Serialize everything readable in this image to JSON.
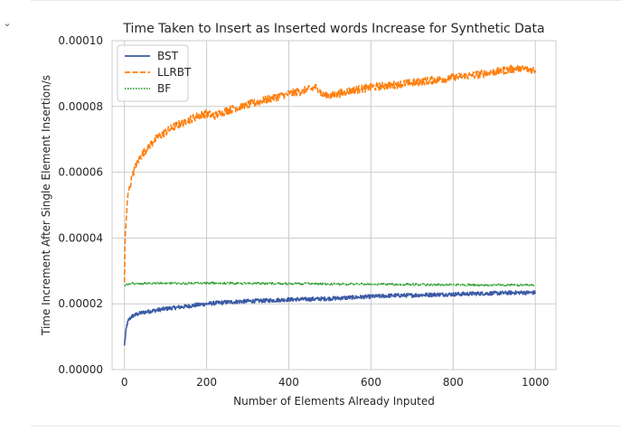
{
  "notebook": {
    "collapse_icon": "chevron-down-icon",
    "collapse_glyph": "⌄"
  },
  "chart_data": {
    "type": "line",
    "title": "Time Taken to Insert as Inserted words Increase for Synthetic Data",
    "xlabel": "Number of Elements Already Inputed",
    "ylabel": "Time Increment After Single Element Insertion/s",
    "xlim": [
      -30,
      1050
    ],
    "ylim": [
      0.0,
      0.0001
    ],
    "x_ticks": [
      0,
      200,
      400,
      600,
      800,
      1000
    ],
    "x_tick_labels": [
      "0",
      "200",
      "400",
      "600",
      "800",
      "1000"
    ],
    "y_ticks": [
      0.0,
      2e-05,
      4e-05,
      6e-05,
      8e-05,
      0.0001
    ],
    "y_tick_labels": [
      "0.00000",
      "0.00002",
      "0.00004",
      "0.00006",
      "0.00008",
      "0.00010"
    ],
    "grid": true,
    "legend_position": "top-left",
    "series": [
      {
        "name": "BST",
        "color": "#3b5ba5",
        "style": "solid",
        "x": [
          0,
          3,
          6,
          10,
          15,
          20,
          30,
          40,
          50,
          60,
          80,
          100,
          120,
          150,
          180,
          200,
          250,
          300,
          350,
          400,
          450,
          500,
          550,
          600,
          650,
          700,
          750,
          800,
          850,
          900,
          950,
          1000
        ],
        "y": [
          7.3e-06,
          1.1e-05,
          1.35e-05,
          1.5e-05,
          1.58e-05,
          1.63e-05,
          1.68e-05,
          1.72e-05,
          1.75e-05,
          1.77e-05,
          1.81e-05,
          1.85e-05,
          1.88e-05,
          1.92e-05,
          1.97e-05,
          2e-05,
          2.05e-05,
          2.08e-05,
          2.1e-05,
          2.13e-05,
          2.14e-05,
          2.16e-05,
          2.19e-05,
          2.22e-05,
          2.25e-05,
          2.26e-05,
          2.28e-05,
          2.29e-05,
          2.31e-05,
          2.32e-05,
          2.34e-05,
          2.34e-05
        ]
      },
      {
        "name": "LLRBT",
        "color": "#ff7f0e",
        "style": "dashed",
        "x": [
          0,
          1,
          2,
          4,
          6,
          8,
          10,
          15,
          20,
          30,
          40,
          50,
          60,
          80,
          100,
          120,
          150,
          180,
          200,
          220,
          250,
          300,
          350,
          400,
          450,
          470,
          480,
          500,
          550,
          600,
          650,
          700,
          750,
          800,
          850,
          900,
          950,
          1000
        ],
        "y": [
          2.65e-05,
          3.5e-05,
          4e-05,
          4.5e-05,
          4.9e-05,
          5.2e-05,
          5.4e-05,
          5.65e-05,
          5.95e-05,
          6.25e-05,
          6.48e-05,
          6.65e-05,
          6.8e-05,
          7.05e-05,
          7.22e-05,
          7.38e-05,
          7.55e-05,
          7.72e-05,
          7.78e-05,
          7.72e-05,
          7.88e-05,
          8.05e-05,
          8.22e-05,
          8.38e-05,
          8.52e-05,
          8.58e-05,
          8.38e-05,
          8.32e-05,
          8.48e-05,
          8.58e-05,
          8.65e-05,
          8.72e-05,
          8.8e-05,
          8.88e-05,
          8.95e-05,
          9.05e-05,
          9.15e-05,
          9.12e-05
        ]
      },
      {
        "name": "BF",
        "color": "#2ca02c",
        "style": "dotted",
        "x": [
          0,
          5,
          10,
          50,
          100,
          150,
          200,
          250,
          300,
          350,
          400,
          450,
          500,
          550,
          600,
          650,
          700,
          750,
          800,
          850,
          900,
          950,
          1000
        ],
        "y": [
          2.55e-05,
          2.58e-05,
          2.62e-05,
          2.62e-05,
          2.62e-05,
          2.62e-05,
          2.63e-05,
          2.63e-05,
          2.62e-05,
          2.62e-05,
          2.61e-05,
          2.61e-05,
          2.6e-05,
          2.6e-05,
          2.6e-05,
          2.59e-05,
          2.59e-05,
          2.58e-05,
          2.58e-05,
          2.58e-05,
          2.57e-05,
          2.57e-05,
          2.56e-05
        ]
      }
    ]
  }
}
